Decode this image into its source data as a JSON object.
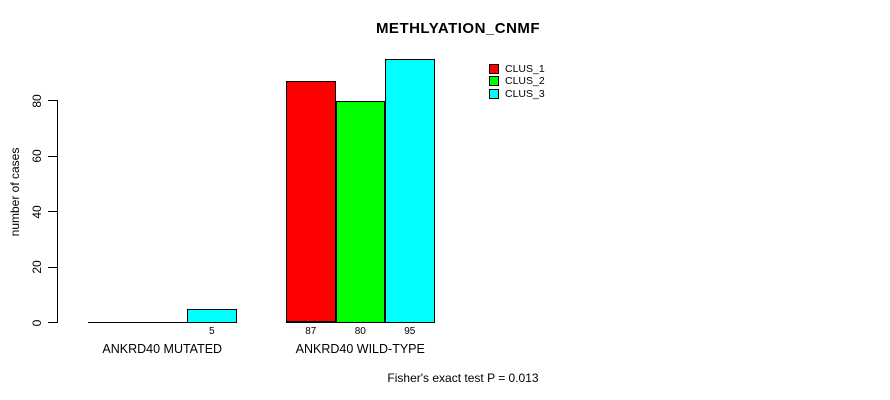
{
  "chart_data": {
    "type": "bar",
    "title": "METHLYATION_CNMF",
    "ylabel": "number of cases",
    "ylim": [
      0,
      80
    ],
    "yticks": [
      "0",
      "20",
      "40",
      "60",
      "80"
    ],
    "grid": false,
    "categories": [
      "ANKRD40 MUTATED",
      "ANKRD40 WILD-TYPE"
    ],
    "series": [
      {
        "name": "CLUS_1",
        "color": "#ff0000",
        "values": [
          0,
          87
        ]
      },
      {
        "name": "CLUS_2",
        "color": "#00ff00",
        "values": [
          0,
          80
        ]
      },
      {
        "name": "CLUS_3",
        "color": "#00ffff",
        "values": [
          5,
          95
        ]
      }
    ],
    "legend_position": "top-right",
    "annotation": "Fisher's exact test P = 0.013"
  }
}
